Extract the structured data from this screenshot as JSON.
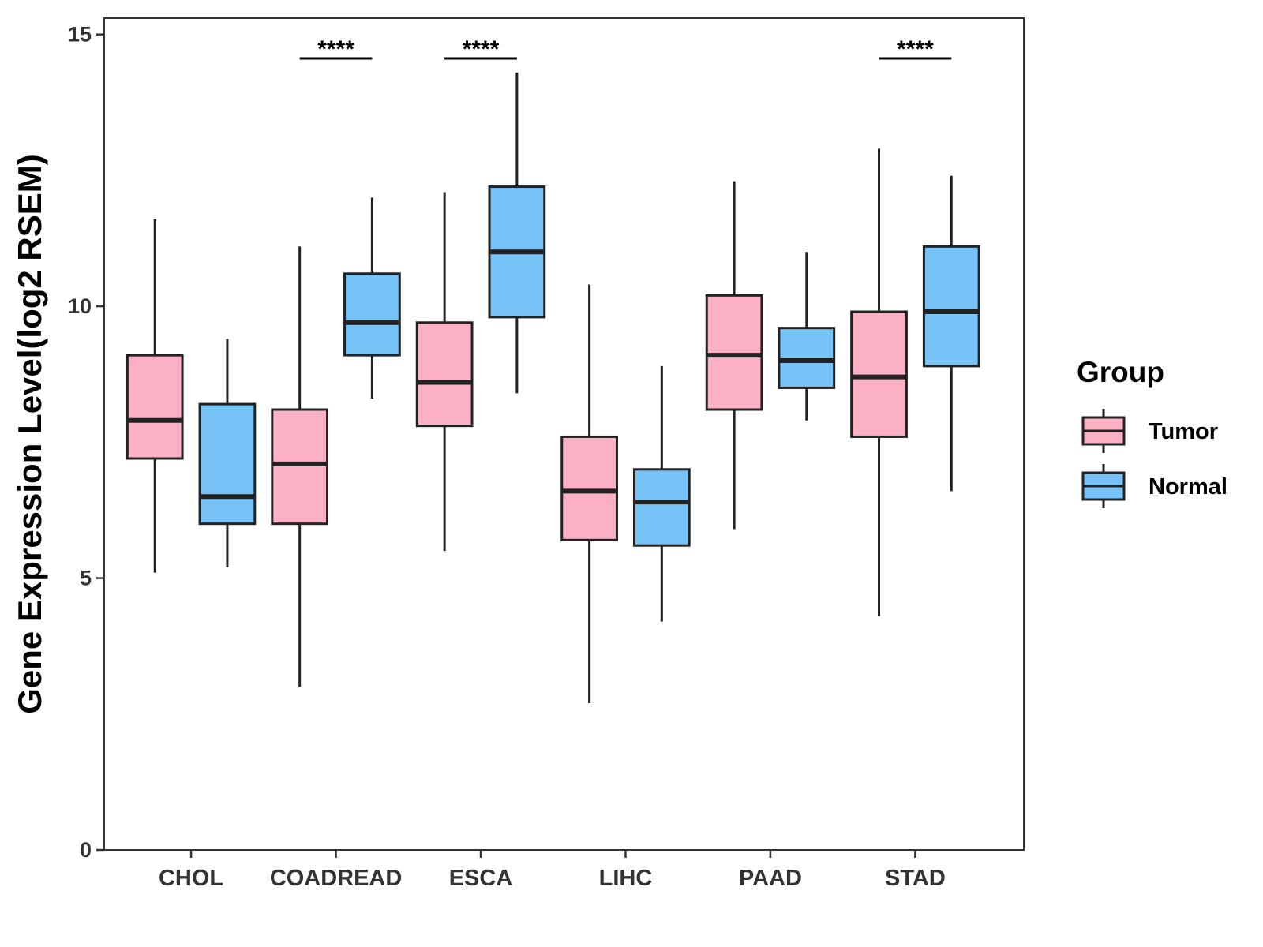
{
  "chart_data": {
    "type": "boxplot",
    "title": "",
    "xlabel": "",
    "ylabel": "Gene Expression Level(log2 RSEM)",
    "ylim": [
      0,
      15.3
    ],
    "yticks": [
      0,
      5,
      10,
      15
    ],
    "grid": false,
    "legend_position": "right",
    "legend_title": "Group",
    "categories": [
      "CHOL",
      "COADREAD",
      "ESCA",
      "LIHC",
      "PAAD",
      "STAD"
    ],
    "series": [
      {
        "name": "Tumor",
        "color": "#FBB1C3",
        "boxes": [
          {
            "min": 5.1,
            "q1": 7.2,
            "median": 7.9,
            "q3": 9.1,
            "max": 11.6
          },
          {
            "min": 3.0,
            "q1": 6.0,
            "median": 7.1,
            "q3": 8.1,
            "max": 11.1
          },
          {
            "min": 5.5,
            "q1": 7.8,
            "median": 8.6,
            "q3": 9.7,
            "max": 12.1
          },
          {
            "min": 2.7,
            "q1": 5.7,
            "median": 6.6,
            "q3": 7.6,
            "max": 10.4
          },
          {
            "min": 5.9,
            "q1": 8.1,
            "median": 9.1,
            "q3": 10.2,
            "max": 12.3
          },
          {
            "min": 4.3,
            "q1": 7.6,
            "median": 8.7,
            "q3": 9.9,
            "max": 12.9
          }
        ]
      },
      {
        "name": "Normal",
        "color": "#77C2F7",
        "boxes": [
          {
            "min": 5.2,
            "q1": 6.0,
            "median": 6.5,
            "q3": 8.2,
            "max": 9.4
          },
          {
            "min": 8.3,
            "q1": 9.1,
            "median": 9.7,
            "q3": 10.6,
            "max": 12.0
          },
          {
            "min": 8.4,
            "q1": 9.8,
            "median": 11.0,
            "q3": 12.2,
            "max": 14.3
          },
          {
            "min": 4.2,
            "q1": 5.6,
            "median": 6.4,
            "q3": 7.0,
            "max": 8.9
          },
          {
            "min": 7.9,
            "q1": 8.5,
            "median": 9.0,
            "q3": 9.6,
            "max": 11.0
          },
          {
            "min": 6.6,
            "q1": 8.9,
            "median": 9.9,
            "q3": 11.1,
            "max": 12.4
          }
        ]
      }
    ],
    "significance": [
      {
        "category": "COADREAD",
        "label": "****"
      },
      {
        "category": "ESCA",
        "label": "****"
      },
      {
        "category": "STAD",
        "label": "****"
      }
    ]
  }
}
